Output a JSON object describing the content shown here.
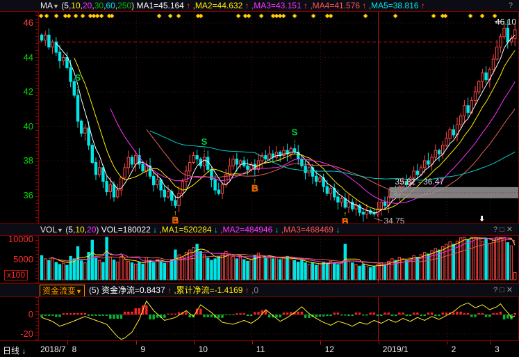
{
  "colors": {
    "up": "#ff4444",
    "down": "#00e6e6",
    "grid": "#4a0f0f",
    "month_line": "#5a1010",
    "month_line_jan": "#aa1515",
    "alert_line": "#cc1111",
    "ma5": "#ffffff",
    "ma10": "#ffee00",
    "ma20": "#ff33ff",
    "ma30": "#e86060",
    "ma60": "#00cfcf",
    "vol_ma5": "#ffee00",
    "vol_ma10": "#ff33ff",
    "vol_ma20": "#e86060",
    "flow_line": "#ffee33",
    "flow_pos": "#ff2222",
    "flow_neg": "#00bb33",
    "band": "#8f8f8f",
    "axis_green": "#00dd00",
    "axis_red": "#ff4242"
  },
  "main_header": {
    "name": "MA",
    "dropdown": "▼",
    "help": "?",
    "params": [
      {
        "t": "5",
        "c": "#ffffff"
      },
      {
        "t": "10",
        "c": "#ffee00"
      },
      {
        "t": "20",
        "c": "#ff33ff"
      },
      {
        "t": "30",
        "c": "#00bb00"
      },
      {
        "t": "60",
        "c": "#00e8e8"
      },
      {
        "t": "250",
        "c": "#00bb00"
      }
    ],
    "items": [
      {
        "t": "MA1=45.164",
        "c": "#ffffff"
      },
      {
        "t": "MA2=44.632",
        "c": "#ffee00"
      },
      {
        "t": "MA3=43.151",
        "c": "#ff33ff"
      },
      {
        "t": "MA4=41.576",
        "c": "#ff5555"
      },
      {
        "t": "MA5=38.816",
        "c": "#00e8e8"
      }
    ],
    "arrow": "↑",
    "arrow_color": "#ff4242"
  },
  "vol_header": {
    "name": "VOL",
    "dropdown": "▼",
    "params": [
      {
        "t": "5",
        "c": "#ffffff"
      },
      {
        "t": "10",
        "c": "#ffee00"
      },
      {
        "t": "20",
        "c": "#ff33ff"
      }
    ],
    "items": [
      {
        "t": "VOL=180022",
        "c": "#ffffff"
      },
      {
        "t": "MA1=520284",
        "c": "#ffee00"
      },
      {
        "t": "MA2=484946",
        "c": "#ff33ff"
      },
      {
        "t": "MA3=468469",
        "c": "#ff5555"
      }
    ],
    "arrow": "↓",
    "arrow_color": "#00e8e8",
    "controls": [
      "?",
      "□",
      "✕"
    ]
  },
  "flow_header": {
    "button": "资金流变",
    "dropdown": "▼",
    "prefix": "(5)",
    "items": [
      {
        "t": "资金净流=0.8437",
        "c": "#ffffff"
      },
      {
        "t": "累计净流=-1.4169",
        "c": "#ffee00"
      }
    ],
    "trailing": ",0",
    "arrow": "↑",
    "arrow_color": "#ff4242",
    "controls": [
      "?",
      "□",
      "✕"
    ]
  },
  "bottom_bar": {
    "period": "日线",
    "period_arrow": "↓",
    "dates": [
      {
        "label": "2018/7",
        "day": 0
      },
      {
        "label": "8",
        "day": 8
      },
      {
        "label": "9",
        "day": 27
      },
      {
        "label": "10",
        "day": 43
      },
      {
        "label": "11",
        "day": 59
      },
      {
        "label": "12",
        "day": 78
      },
      {
        "label": "2019/1",
        "day": 94
      },
      {
        "label": "2",
        "day": 113
      },
      {
        "label": "3",
        "day": 125
      }
    ]
  },
  "main_axis": {
    "ticks": [
      {
        "v": 46,
        "label": "46",
        "c": "#ff4242"
      },
      {
        "v": 44,
        "label": "44",
        "c": "#00dd00"
      },
      {
        "v": 42,
        "label": "42",
        "c": "#00dd00"
      },
      {
        "v": 40,
        "label": "40",
        "c": "#00dd00"
      },
      {
        "v": 38,
        "label": "38",
        "c": "#00dd00"
      },
      {
        "v": 36,
        "label": "36",
        "c": "#00dd00"
      }
    ]
  },
  "vol_axis": {
    "ticks": [
      {
        "v": 10000,
        "label": "10000"
      },
      {
        "v": 5000,
        "label": "5000"
      }
    ],
    "unit": "x100",
    "c": "#ff2a2a"
  },
  "flow_axis": {
    "ticks": [
      {
        "v": 0,
        "label": "0"
      },
      {
        "v": -20,
        "label": "-20"
      }
    ],
    "c": "#ff2a2a"
  },
  "annotations": {
    "high_label": "46.10",
    "low_label": "34.75",
    "band_label": "35.82 - 36.47",
    "band_from": 35.82,
    "band_to": 36.47,
    "band_start_day": 97,
    "alert_value": 44.9
  },
  "markers": [
    {
      "day": 10,
      "type": "S"
    },
    {
      "day": 37,
      "type": "B"
    },
    {
      "day": 45,
      "type": "S"
    },
    {
      "day": 59,
      "type": "B"
    },
    {
      "day": 70,
      "type": "S"
    },
    {
      "day": 84,
      "type": "B"
    }
  ],
  "diamonds": [
    60,
    68,
    82,
    95,
    100,
    110,
    120,
    131,
    136,
    141,
    147,
    158,
    162,
    230,
    246,
    258,
    286,
    290,
    344,
    354,
    359,
    377,
    394,
    399,
    404,
    409,
    425,
    452,
    472,
    477,
    527,
    570,
    625,
    638,
    642,
    678,
    695,
    713
  ],
  "chart_data": {
    "type": "candlestick+volume+flow",
    "first_open": 45.3,
    "high_day": 128,
    "high_value": 46.1,
    "low_day": 92,
    "low_value": 34.75,
    "closes": [
      45.0,
      45.3,
      44.6,
      44.9,
      44.3,
      43.8,
      44.0,
      43.4,
      42.6,
      41.8,
      40.3,
      39.6,
      39.9,
      38.9,
      37.9,
      37.2,
      37.6,
      36.8,
      36.2,
      36.6,
      35.9,
      36.3,
      37.0,
      37.6,
      38.2,
      37.8,
      38.3,
      37.8,
      37.4,
      37.7,
      37.1,
      36.6,
      36.9,
      36.3,
      35.9,
      36.2,
      35.7,
      35.4,
      36.1,
      36.8,
      37.4,
      37.9,
      38.3,
      38.1,
      37.7,
      38.2,
      37.5,
      36.9,
      36.3,
      36.1,
      36.6,
      37.2,
      37.7,
      38.1,
      37.8,
      38.0,
      37.7,
      37.5,
      37.8,
      37.5,
      38.0,
      38.3,
      38.1,
      38.4,
      38.2,
      38.5,
      38.3,
      38.6,
      38.4,
      38.7,
      38.5,
      38.1,
      37.7,
      37.3,
      37.6,
      37.1,
      36.8,
      37.0,
      36.5,
      36.1,
      36.4,
      35.9,
      35.6,
      35.8,
      35.3,
      35.6,
      35.2,
      35.4,
      35.0,
      34.9,
      35.1,
      34.95,
      34.9,
      35.2,
      35.6,
      35.4,
      35.9,
      36.2,
      36.0,
      36.5,
      36.8,
      36.6,
      37.0,
      37.4,
      37.2,
      37.6,
      38.0,
      37.8,
      38.2,
      38.6,
      38.4,
      38.9,
      39.3,
      39.8,
      39.5,
      40.1,
      40.6,
      41.2,
      40.8,
      41.5,
      42.0,
      42.6,
      43.1,
      42.7,
      43.3,
      43.9,
      44.6,
      45.2,
      45.7,
      44.9,
      45.1,
      45.6
    ],
    "volumes": [
      6000,
      5200,
      4800,
      5500,
      4300,
      3800,
      4100,
      3600,
      5800,
      5200,
      8200,
      4700,
      4200,
      6800,
      9800,
      5400,
      4800,
      4300,
      11300,
      5600,
      4900,
      4400,
      5800,
      5100,
      4600,
      4200,
      3900,
      4400,
      3900,
      5600,
      4800,
      4300,
      5100,
      4600,
      4100,
      4500,
      5000,
      7400,
      6200,
      5600,
      6800,
      7400,
      8000,
      8800,
      7000,
      6200,
      5400,
      4800,
      5200,
      5800,
      6400,
      7000,
      6400,
      5800,
      5200,
      5600,
      5000,
      4600,
      5000,
      6000,
      6600,
      6000,
      5400,
      5800,
      5200,
      5600,
      5000,
      5400,
      5800,
      5200,
      4800,
      4400,
      4800,
      4200,
      3800,
      4200,
      3600,
      4000,
      4400,
      4000,
      4600,
      4200,
      3800,
      4200,
      8800,
      4600,
      4200,
      3800,
      3400,
      3800,
      3400,
      3000,
      3400,
      3800,
      4200,
      3800,
      4600,
      5200,
      4800,
      5600,
      5200,
      4800,
      5400,
      6000,
      5600,
      6200,
      6800,
      6400,
      7200,
      7800,
      7400,
      8200,
      8800,
      9400,
      8800,
      9600,
      10400,
      11200,
      10000,
      10800,
      11600,
      10400,
      9600,
      10200,
      9000,
      9800,
      10600,
      11400,
      11900,
      9200,
      8400,
      1800
    ],
    "cum_flow_keypoints": [
      [
        0,
        -3
      ],
      [
        3,
        -7
      ],
      [
        5,
        -12
      ],
      [
        8,
        -8
      ],
      [
        12,
        -2
      ],
      [
        15,
        -6
      ],
      [
        18,
        -10
      ],
      [
        22,
        -27
      ],
      [
        25,
        -18
      ],
      [
        27,
        -5
      ],
      [
        29,
        14
      ],
      [
        31,
        4
      ],
      [
        34,
        -6
      ],
      [
        37,
        -3
      ],
      [
        40,
        4
      ],
      [
        42,
        -2
      ],
      [
        44,
        10
      ],
      [
        47,
        2
      ],
      [
        50,
        -8
      ],
      [
        53,
        -10
      ],
      [
        56,
        -6
      ],
      [
        58,
        -9
      ],
      [
        60,
        -4
      ],
      [
        62,
        5
      ],
      [
        64,
        -1
      ],
      [
        66,
        -7
      ],
      [
        68,
        -3
      ],
      [
        70,
        2
      ],
      [
        72,
        8
      ],
      [
        74,
        1
      ],
      [
        76,
        -4
      ],
      [
        78,
        -8
      ],
      [
        80,
        -11
      ],
      [
        82,
        -7
      ],
      [
        84,
        -9
      ],
      [
        86,
        -12
      ],
      [
        88,
        -8
      ],
      [
        90,
        -10
      ],
      [
        92,
        -6
      ],
      [
        94,
        -9
      ],
      [
        96,
        -5
      ],
      [
        98,
        -8
      ],
      [
        100,
        -4
      ],
      [
        102,
        -7
      ],
      [
        104,
        -3
      ],
      [
        106,
        -6
      ],
      [
        108,
        -2
      ],
      [
        110,
        -5
      ],
      [
        112,
        -1
      ],
      [
        114,
        3
      ],
      [
        116,
        9
      ],
      [
        118,
        12
      ],
      [
        120,
        7
      ],
      [
        122,
        10
      ],
      [
        124,
        5
      ],
      [
        126,
        8
      ],
      [
        127,
        11
      ],
      [
        128,
        6
      ],
      [
        129,
        2
      ],
      [
        130,
        -3
      ],
      [
        131,
        -1.4
      ]
    ]
  }
}
